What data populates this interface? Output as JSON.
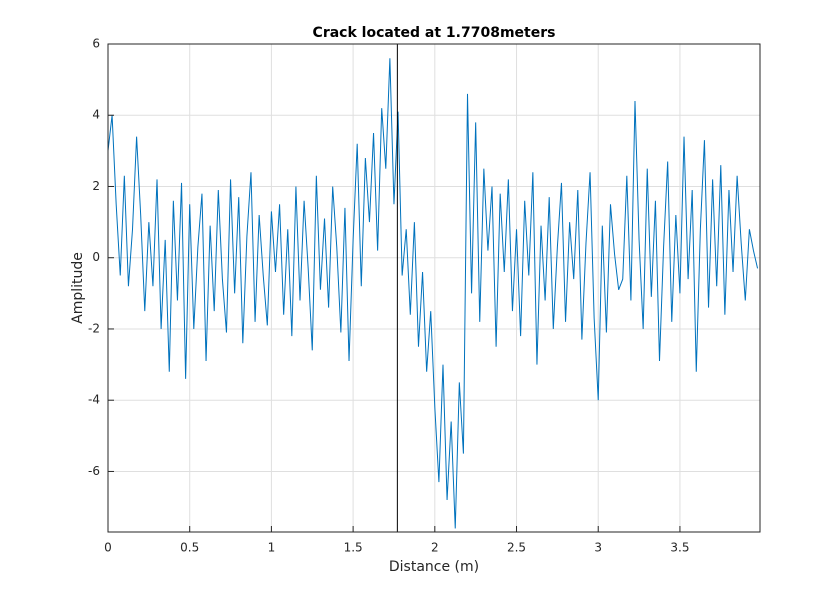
{
  "chart_data": {
    "type": "line",
    "title": "Crack located at 1.7708meters",
    "xlabel": "Distance (m)",
    "ylabel": "Amplitude",
    "color": "#0072bd",
    "grid": true,
    "crack_location": 1.7708,
    "xlim": [
      0,
      3.99
    ],
    "ylim": [
      -7.7,
      6
    ],
    "xticks": [
      0,
      0.5,
      1,
      1.5,
      2,
      2.5,
      3,
      3.5
    ],
    "yticks": [
      -6,
      -4,
      -2,
      0,
      2,
      4,
      6
    ],
    "x": [
      0,
      0.025,
      0.05,
      0.075,
      0.1,
      0.125,
      0.15,
      0.175,
      0.2,
      0.225,
      0.25,
      0.275,
      0.3,
      0.325,
      0.35,
      0.375,
      0.4,
      0.425,
      0.45,
      0.475,
      0.5,
      0.525,
      0.55,
      0.575,
      0.6,
      0.625,
      0.65,
      0.675,
      0.7,
      0.725,
      0.75,
      0.775,
      0.8,
      0.825,
      0.85,
      0.875,
      0.9,
      0.925,
      0.95,
      0.975,
      1,
      1.025,
      1.05,
      1.075,
      1.1,
      1.125,
      1.15,
      1.175,
      1.2,
      1.225,
      1.25,
      1.275,
      1.3,
      1.325,
      1.35,
      1.375,
      1.4,
      1.425,
      1.45,
      1.475,
      1.5,
      1.525,
      1.55,
      1.575,
      1.6,
      1.625,
      1.65,
      1.675,
      1.7,
      1.725,
      1.75,
      1.775,
      1.8,
      1.825,
      1.85,
      1.875,
      1.9,
      1.925,
      1.95,
      1.975,
      2,
      2.025,
      2.05,
      2.075,
      2.1,
      2.125,
      2.15,
      2.175,
      2.2,
      2.225,
      2.25,
      2.275,
      2.3,
      2.325,
      2.35,
      2.375,
      2.4,
      2.425,
      2.45,
      2.475,
      2.5,
      2.525,
      2.55,
      2.575,
      2.6,
      2.625,
      2.65,
      2.675,
      2.7,
      2.725,
      2.75,
      2.775,
      2.8,
      2.825,
      2.85,
      2.875,
      2.9,
      2.925,
      2.95,
      2.975,
      3,
      3.025,
      3.05,
      3.075,
      3.1,
      3.125,
      3.15,
      3.175,
      3.2,
      3.225,
      3.25,
      3.275,
      3.3,
      3.325,
      3.35,
      3.375,
      3.4,
      3.425,
      3.45,
      3.475,
      3.5,
      3.525,
      3.55,
      3.575,
      3.6,
      3.625,
      3.65,
      3.675,
      3.7,
      3.725,
      3.75,
      3.775,
      3.8,
      3.825,
      3.85,
      3.875,
      3.9,
      3.925,
      3.95,
      3.975
    ],
    "values": [
      3.0,
      4.0,
      1.5,
      -0.5,
      2.3,
      -0.8,
      0.8,
      3.4,
      1.2,
      -1.5,
      1.0,
      -0.8,
      2.2,
      -2.0,
      0.5,
      -3.2,
      1.6,
      -1.2,
      2.1,
      -3.4,
      1.5,
      -2.0,
      0.3,
      1.8,
      -2.9,
      0.9,
      -1.5,
      1.9,
      -0.6,
      -2.1,
      2.2,
      -1.0,
      1.7,
      -2.4,
      0.6,
      2.4,
      -1.8,
      1.2,
      -0.5,
      -1.9,
      1.3,
      -0.4,
      1.5,
      -1.6,
      0.8,
      -2.2,
      2.0,
      -1.2,
      1.6,
      -0.3,
      -2.6,
      2.3,
      -0.9,
      1.1,
      -1.4,
      2.0,
      0.3,
      -2.1,
      1.4,
      -2.9,
      0.5,
      3.2,
      -0.8,
      2.8,
      1.0,
      3.5,
      0.2,
      4.2,
      2.5,
      5.6,
      1.5,
      4.1,
      -0.5,
      0.8,
      -1.6,
      1.0,
      -2.5,
      -0.4,
      -3.2,
      -1.5,
      -4.2,
      -6.3,
      -3.0,
      -6.8,
      -4.6,
      -7.6,
      -3.5,
      -5.5,
      4.6,
      -1.0,
      3.8,
      -1.8,
      2.5,
      0.2,
      2.0,
      -2.5,
      1.8,
      -0.4,
      2.2,
      -1.5,
      0.8,
      -2.2,
      1.6,
      -0.5,
      2.4,
      -3.0,
      0.9,
      -1.2,
      1.7,
      -2.0,
      0.3,
      2.1,
      -1.8,
      1.0,
      -0.6,
      1.9,
      -2.3,
      0.4,
      2.4,
      -1.7,
      -4.0,
      0.9,
      -2.1,
      1.5,
      0.1,
      -0.9,
      -0.6,
      2.3,
      -1.2,
      4.4,
      0.5,
      -2.0,
      2.5,
      -1.1,
      1.6,
      -2.9,
      0.3,
      2.7,
      -1.8,
      1.2,
      -1.0,
      3.4,
      -0.6,
      1.9,
      -3.2,
      0.8,
      3.3,
      -1.4,
      2.2,
      -0.8,
      2.6,
      -1.6,
      1.9,
      -0.4,
      2.3,
      0.4,
      -1.2,
      0.8,
      0.2,
      -0.3
    ]
  }
}
